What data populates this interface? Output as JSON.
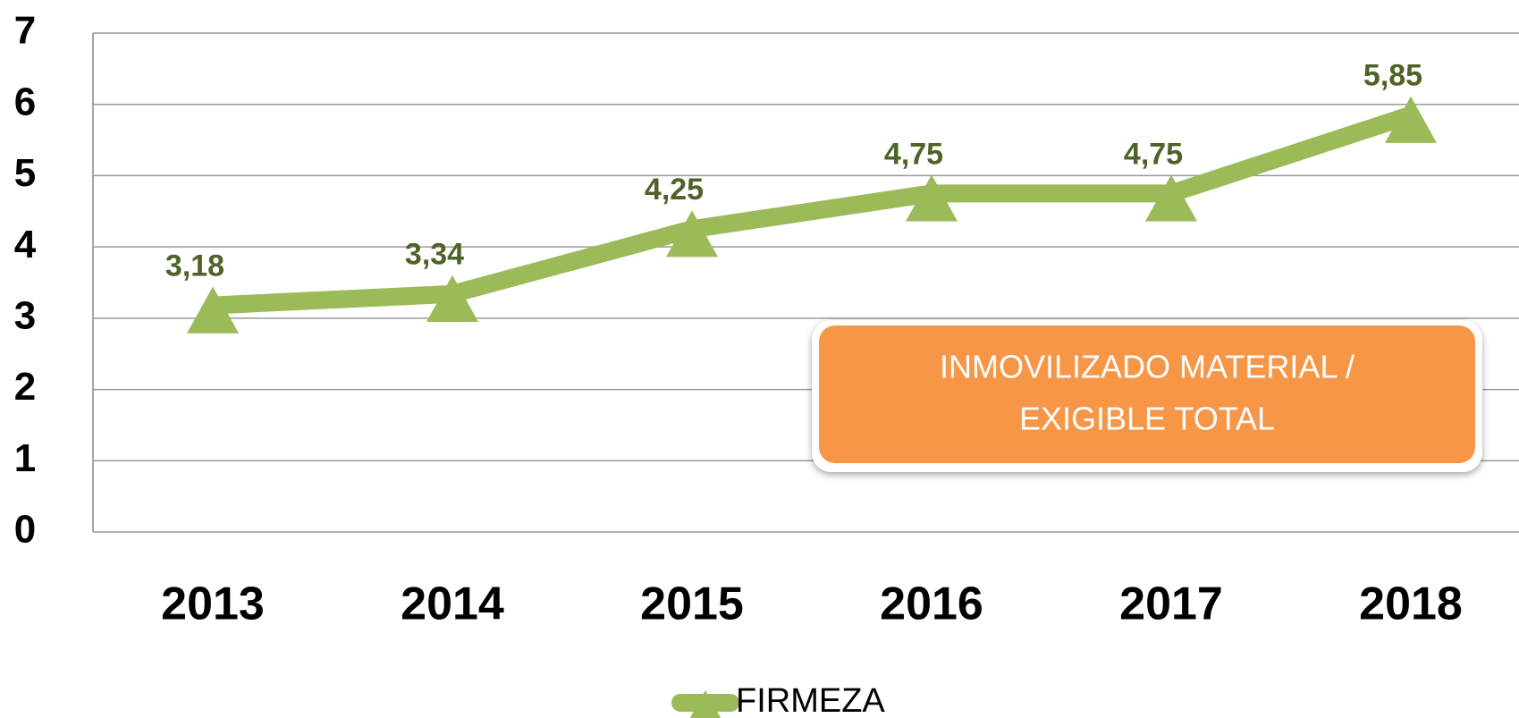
{
  "chart_data": {
    "type": "line",
    "categories": [
      "2013",
      "2014",
      "2015",
      "2016",
      "2017",
      "2018"
    ],
    "series": [
      {
        "name": "FIRMEZA",
        "color": "#9bbb59",
        "values": [
          3.18,
          3.34,
          4.25,
          4.75,
          4.75,
          5.85
        ],
        "value_labels": [
          "3,18",
          "3,34",
          "4,25",
          "4,75",
          "4,75",
          "5,85"
        ]
      }
    ],
    "ylim": [
      0,
      7
    ],
    "yticks": [
      0,
      1,
      2,
      3,
      4,
      5,
      6,
      7
    ],
    "grid": true,
    "annotation": [
      "INMOVILIZADO  MATERIAL  /",
      "EXIGIBLE TOTAL"
    ],
    "legend": "bottom"
  }
}
